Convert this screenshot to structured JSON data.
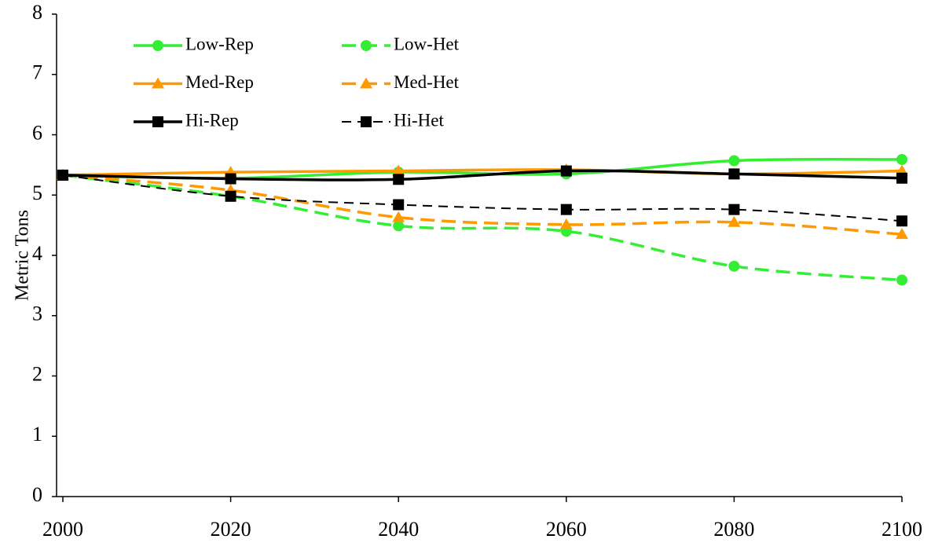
{
  "chart_data": {
    "type": "line",
    "y_label": "Metric Tons",
    "x": [
      2000,
      2020,
      2040,
      2060,
      2080,
      2100
    ],
    "xlim": [
      2000,
      2100
    ],
    "xticks": [
      2000,
      2020,
      2040,
      2060,
      2080,
      2100
    ],
    "ylim": [
      0,
      8
    ],
    "yticks": [
      0,
      1,
      2,
      3,
      4,
      5,
      6,
      7,
      8
    ],
    "grid": false,
    "legend": "upper left",
    "smooth": true,
    "series": [
      {
        "name": "Low-Rep",
        "color": "#33ee33",
        "line_style": "solid",
        "marker": "circle",
        "values": [
          5.33,
          5.28,
          5.38,
          5.35,
          5.57,
          5.59
        ]
      },
      {
        "name": "Low-Het",
        "color": "#33ee33",
        "line_style": "dashed",
        "marker": "circle",
        "values": [
          5.33,
          4.98,
          4.49,
          4.4,
          3.82,
          3.59
        ]
      },
      {
        "name": "Med-Rep",
        "color": "#ff9900",
        "line_style": "solid",
        "marker": "triangle",
        "values": [
          5.33,
          5.38,
          5.4,
          5.42,
          5.35,
          5.4
        ]
      },
      {
        "name": "Med-Het",
        "color": "#ff9900",
        "line_style": "dashed",
        "marker": "triangle",
        "values": [
          5.33,
          5.08,
          4.63,
          4.51,
          4.55,
          4.35
        ]
      },
      {
        "name": "Hi-Rep",
        "color": "#000000",
        "line_style": "solid",
        "marker": "square",
        "values": [
          5.33,
          5.27,
          5.26,
          5.4,
          5.35,
          5.28
        ]
      },
      {
        "name": "Hi-Het",
        "color": "#000000",
        "line_style": "dashed",
        "marker": "square",
        "values": [
          5.33,
          4.98,
          4.84,
          4.76,
          4.76,
          4.57
        ]
      }
    ]
  }
}
